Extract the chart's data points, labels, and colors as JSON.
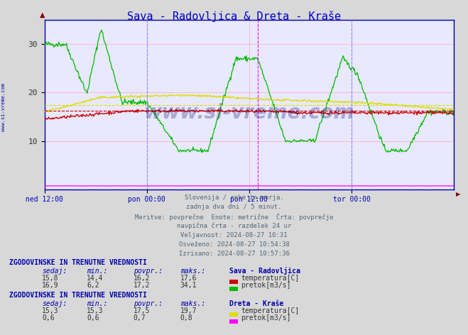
{
  "title": "Sava - Radovljica & Dreta - Kraše",
  "title_color": "#0000cc",
  "bg_color": "#d8d8d8",
  "plot_bg_color": "#e8e8ff",
  "grid_color": "#ffaaaa",
  "x_labels": [
    "ned 12:00",
    "pon 00:00",
    "pon 12:00",
    "tor 00:00"
  ],
  "y_ticks": [
    10,
    20,
    30
  ],
  "y_min": 0,
  "y_max": 35,
  "watermark": "www.si-vreme.com",
  "subtitle_lines": [
    "Slovenija / reke in morja.",
    "zadnja dva dni / 5 minut.",
    "Meritve: povprečne  Enote: metrične  Črta: povprečje",
    "navpična črta - razdelek 24 ur",
    "Veljavnost: 2024-08-27 10:31",
    "Osveženo: 2024-08-27 10:54:38",
    "Izrisano: 2024-08-27 10:57:36"
  ],
  "table1_title": "ZGODOVINSKE IN TRENUTNE VREDNOSTI",
  "table1_station": "Sava - Radovljica",
  "table1_headers": [
    "sedaj:",
    "min.:",
    "povpr.:",
    "maks.:"
  ],
  "table1_row1": [
    "15,8",
    "14,4",
    "16,2",
    "17,6"
  ],
  "table1_row1_label": "temperatura[C]",
  "table1_row1_color": "#cc0000",
  "table1_row2": [
    "16,9",
    "6,2",
    "17,2",
    "34,1"
  ],
  "table1_row2_label": "pretok[m3/s]",
  "table1_row2_color": "#00bb00",
  "table2_title": "ZGODOVINSKE IN TRENUTNE VREDNOSTI",
  "table2_station": "Dreta - Kraše",
  "table2_headers": [
    "sedaj:",
    "min.:",
    "povpr.:",
    "maks.:"
  ],
  "table2_row1": [
    "15,3",
    "15,3",
    "17,5",
    "19,7"
  ],
  "table2_row1_label": "temperatura[C]",
  "table2_row1_color": "#dddd00",
  "table2_row2": [
    "0,6",
    "0,6",
    "0,7",
    "0,8"
  ],
  "table2_row2_label": "pretok[m3/s]",
  "table2_row2_color": "#ff00ff",
  "vline_color": "#ff00ff",
  "vline2_color": "#8888ff",
  "avg_line_color_red": "#cc0000",
  "avg_line_color_yellow": "#dddd00",
  "n_points": 577
}
